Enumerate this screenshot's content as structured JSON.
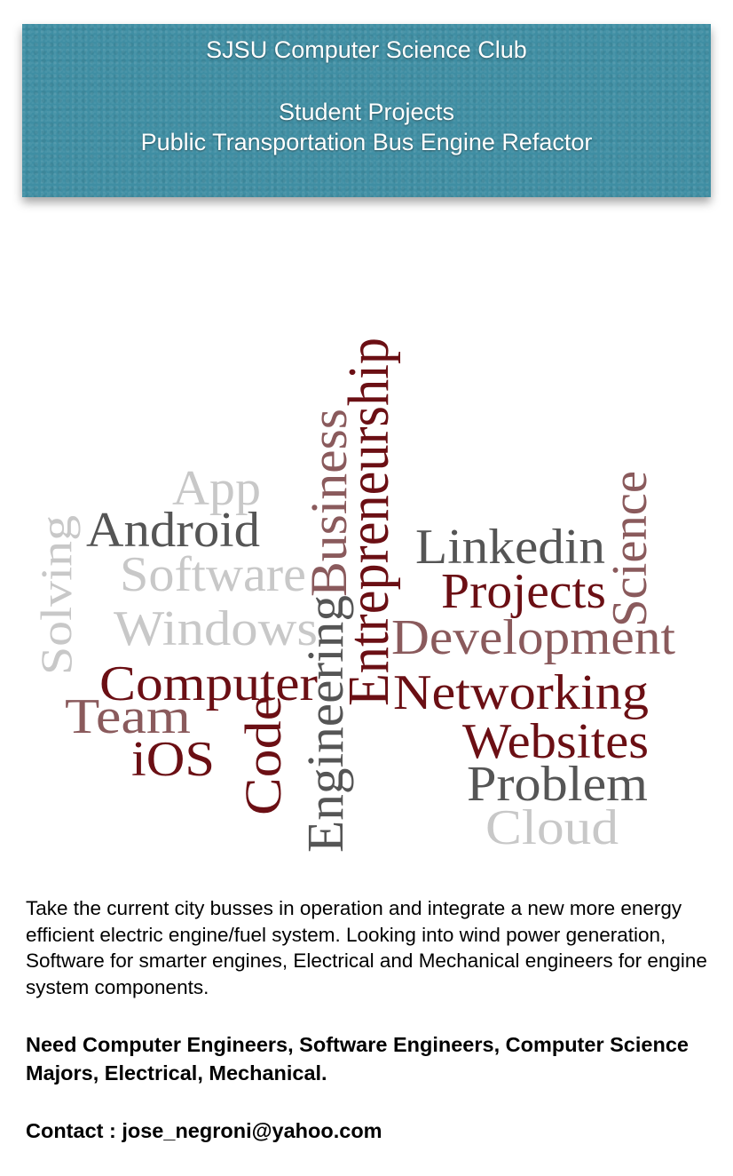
{
  "header": {
    "club_name": "SJSU Computer Science Club",
    "section": "Student Projects",
    "project_title": "Public Transportation Bus Engine Refactor",
    "background_color": "#3f8ea3"
  },
  "word_cloud": {
    "colors": {
      "dark_red": "#6b0f14",
      "dusty_rose": "#8a5a5c",
      "dark_gray": "#555555",
      "light_gray": "#c8c8c8"
    },
    "words": [
      {
        "id": "app",
        "text": "App",
        "color": "light_gray"
      },
      {
        "id": "android",
        "text": "Android",
        "color": "dark_gray"
      },
      {
        "id": "software",
        "text": "Software",
        "color": "light_gray"
      },
      {
        "id": "windows",
        "text": "Windows",
        "color": "light_gray"
      },
      {
        "id": "solving",
        "text": "Solving",
        "color": "light_gray"
      },
      {
        "id": "computer",
        "text": "Computer",
        "color": "dark_red"
      },
      {
        "id": "team",
        "text": "Team",
        "color": "dusty_rose"
      },
      {
        "id": "ios",
        "text": "iOS",
        "color": "dark_red"
      },
      {
        "id": "code",
        "text": "Code",
        "color": "dark_red"
      },
      {
        "id": "engineering",
        "text": "Engineering",
        "color": "dark_gray"
      },
      {
        "id": "business",
        "text": "Business",
        "color": "dusty_rose"
      },
      {
        "id": "entrepreneurship",
        "text": "Entrepreneurship",
        "color": "dark_red"
      },
      {
        "id": "linkedin",
        "text": "Linkedin",
        "color": "dark_gray"
      },
      {
        "id": "projects",
        "text": "Projects",
        "color": "dark_red"
      },
      {
        "id": "science",
        "text": "Science",
        "color": "dusty_rose"
      },
      {
        "id": "development",
        "text": "Development",
        "color": "dusty_rose"
      },
      {
        "id": "networking",
        "text": "Networking",
        "color": "dark_red"
      },
      {
        "id": "websites",
        "text": "Websites",
        "color": "dark_red"
      },
      {
        "id": "problem",
        "text": "Problem",
        "color": "dark_gray"
      },
      {
        "id": "cloud",
        "text": "Cloud",
        "color": "light_gray"
      }
    ]
  },
  "body": {
    "description": "Take the current city busses in operation and integrate a new more energy efficient electric engine/fuel system. Looking into wind power generation, Software for smarter engines, Electrical and Mechanical engineers for engine system components.",
    "needs": "Need Computer Engineers, Software Engineers, Computer Science Majors, Electrical, Mechanical.",
    "contact": "Contact : jose_negroni@yahoo.com"
  }
}
